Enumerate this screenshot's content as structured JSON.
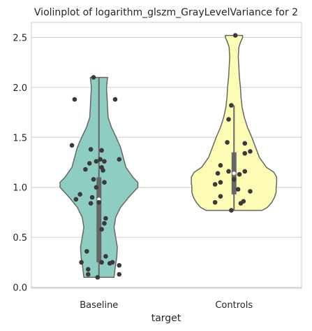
{
  "chart_data": {
    "type": "violin",
    "title": "Violinplot of logarithm_glszm_GrayLevelVariance for 2",
    "xlabel": "target",
    "ylabel": "",
    "categories": [
      "Baseline",
      "Controls"
    ],
    "yticks": [
      "0.0",
      "0.5",
      "1.0",
      "1.5",
      "2.0",
      "2.5"
    ],
    "ylim": [
      -0.01,
      2.65
    ],
    "grid": true,
    "violin_colors": [
      "#8ecdc2",
      "#fcfcb5"
    ],
    "outline_color": "#666666",
    "point_color": "#3a3a3a",
    "series": [
      {
        "category": "Baseline",
        "range": [
          0.1,
          2.1
        ],
        "box": {
          "q1": 0.25,
          "median": 0.88,
          "q3": 1.1,
          "whisker_low": 0.1,
          "whisker_high": 2.1
        },
        "profile": [
          [
            0.1,
            0.28
          ],
          [
            0.2,
            0.3
          ],
          [
            0.3,
            0.33
          ],
          [
            0.4,
            0.34
          ],
          [
            0.5,
            0.31
          ],
          [
            0.6,
            0.28
          ],
          [
            0.7,
            0.31
          ],
          [
            0.8,
            0.4
          ],
          [
            0.9,
            0.55
          ],
          [
            1.0,
            0.72
          ],
          [
            1.05,
            0.72
          ],
          [
            1.1,
            0.63
          ],
          [
            1.2,
            0.5
          ],
          [
            1.3,
            0.45
          ],
          [
            1.4,
            0.4
          ],
          [
            1.5,
            0.32
          ],
          [
            1.6,
            0.23
          ],
          [
            1.7,
            0.17
          ],
          [
            1.8,
            0.16
          ],
          [
            1.9,
            0.15
          ],
          [
            2.0,
            0.14
          ],
          [
            2.1,
            0.16
          ]
        ],
        "points": [
          [
            -0.04,
            2.1
          ],
          [
            -0.18,
            1.88
          ],
          [
            0.12,
            1.88
          ],
          [
            -0.2,
            1.42
          ],
          [
            -0.06,
            1.38
          ],
          [
            0.02,
            1.37
          ],
          [
            0.15,
            1.28
          ],
          [
            0.01,
            1.28
          ],
          [
            -0.02,
            1.26
          ],
          [
            0.04,
            1.26
          ],
          [
            -0.07,
            1.24
          ],
          [
            0.02,
            1.2
          ],
          [
            -0.1,
            1.18
          ],
          [
            0.03,
            1.17
          ],
          [
            -0.04,
            1.08
          ],
          [
            0.04,
            1.05
          ],
          [
            -0.02,
            1.0
          ],
          [
            -0.14,
            0.93
          ],
          [
            -0.17,
            0.88
          ],
          [
            -0.05,
            0.9
          ],
          [
            -0.06,
            0.84
          ],
          [
            0.0,
            0.85
          ],
          [
            0.05,
            0.69
          ],
          [
            0.04,
            0.64
          ],
          [
            0.02,
            0.58
          ],
          [
            -0.09,
            0.36
          ],
          [
            0.05,
            0.31
          ],
          [
            -0.13,
            0.25
          ],
          [
            0.02,
            0.25
          ],
          [
            0.1,
            0.25
          ],
          [
            0.08,
            0.24
          ],
          [
            0.15,
            0.22
          ],
          [
            -0.08,
            0.18
          ],
          [
            -0.08,
            0.13
          ],
          [
            0.15,
            0.13
          ],
          [
            -0.01,
            0.1
          ]
        ]
      },
      {
        "category": "Controls",
        "range": [
          0.77,
          2.52
        ],
        "box": {
          "q1": 0.93,
          "median": 1.14,
          "q3": 1.35,
          "whisker_low": 0.77,
          "whisker_high": 1.82
        },
        "profile": [
          [
            0.77,
            0.52
          ],
          [
            0.8,
            0.62
          ],
          [
            0.85,
            0.7
          ],
          [
            0.9,
            0.75
          ],
          [
            0.95,
            0.78
          ],
          [
            1.0,
            0.78
          ],
          [
            1.05,
            0.79
          ],
          [
            1.1,
            0.79
          ],
          [
            1.15,
            0.74
          ],
          [
            1.2,
            0.6
          ],
          [
            1.3,
            0.47
          ],
          [
            1.4,
            0.4
          ],
          [
            1.5,
            0.33
          ],
          [
            1.6,
            0.25
          ],
          [
            1.7,
            0.19
          ],
          [
            1.8,
            0.15
          ],
          [
            1.9,
            0.13
          ],
          [
            2.0,
            0.12
          ],
          [
            2.1,
            0.1
          ],
          [
            2.2,
            0.09
          ],
          [
            2.3,
            0.08
          ],
          [
            2.4,
            0.09
          ],
          [
            2.45,
            0.12
          ],
          [
            2.5,
            0.16
          ],
          [
            2.52,
            0.16
          ]
        ],
        "points": [
          [
            0.01,
            2.52
          ],
          [
            -0.02,
            1.82
          ],
          [
            -0.04,
            1.68
          ],
          [
            -0.05,
            1.45
          ],
          [
            0.08,
            1.44
          ],
          [
            0.12,
            1.36
          ],
          [
            0.08,
            1.34
          ],
          [
            -0.1,
            1.22
          ],
          [
            -0.04,
            1.16
          ],
          [
            0.08,
            1.16
          ],
          [
            -0.12,
            1.14
          ],
          [
            0.04,
            1.13
          ],
          [
            0.0,
            1.08
          ],
          [
            -0.1,
            1.05
          ],
          [
            -0.14,
            1.03
          ],
          [
            0.03,
            0.98
          ],
          [
            0.12,
            0.96
          ],
          [
            -0.1,
            0.91
          ],
          [
            -0.14,
            0.85
          ],
          [
            0.07,
            0.86
          ],
          [
            0.05,
            0.84
          ],
          [
            -0.02,
            0.77
          ]
        ]
      }
    ]
  }
}
